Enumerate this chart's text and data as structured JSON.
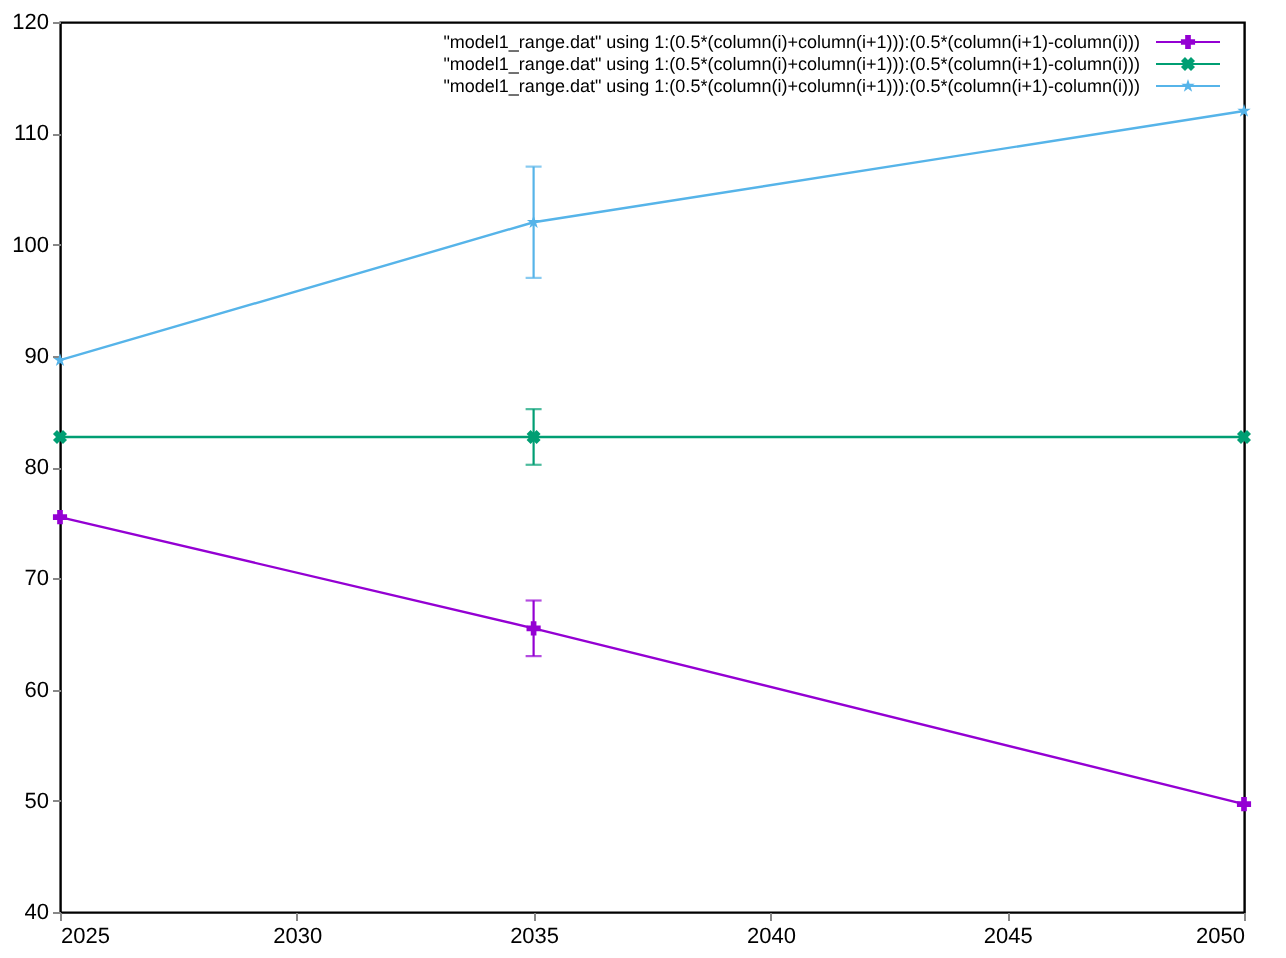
{
  "chart_data": {
    "type": "line",
    "x": [
      2025,
      2035,
      2050
    ],
    "series": [
      {
        "name": "\"model1_range.dat\" using 1:(0.5*(column(i)+column(i+1))):(0.5*(column(i+1)-column(i)))",
        "color": "#9400d3",
        "marker": "cross",
        "values": [
          75.5,
          65.5,
          49.7
        ],
        "errors": [
          null,
          2.5,
          null
        ]
      },
      {
        "name": "\"model1_range.dat\" using 1:(0.5*(column(i)+column(i+1))):(0.5*(column(i+1)-column(i)))",
        "color": "#009e73",
        "marker": "x",
        "values": [
          82.7,
          82.7,
          82.7
        ],
        "errors": [
          null,
          2.5,
          null
        ]
      },
      {
        "name": "\"model1_range.dat\" using 1:(0.5*(column(i)+column(i+1))):(0.5*(column(i+1)-column(i)))",
        "color": "#56b4e9",
        "marker": "star",
        "values": [
          89.6,
          102,
          112
        ],
        "errors": [
          null,
          5,
          null
        ]
      }
    ],
    "xlim": [
      2025,
      2050
    ],
    "xticks": [
      2025,
      2030,
      2035,
      2040,
      2045,
      2050
    ],
    "ylim": [
      40,
      120
    ],
    "yticks": [
      40,
      50,
      60,
      70,
      80,
      90,
      100,
      110,
      120
    ],
    "grid": false,
    "legend": "top right",
    "line_style": "solid"
  }
}
